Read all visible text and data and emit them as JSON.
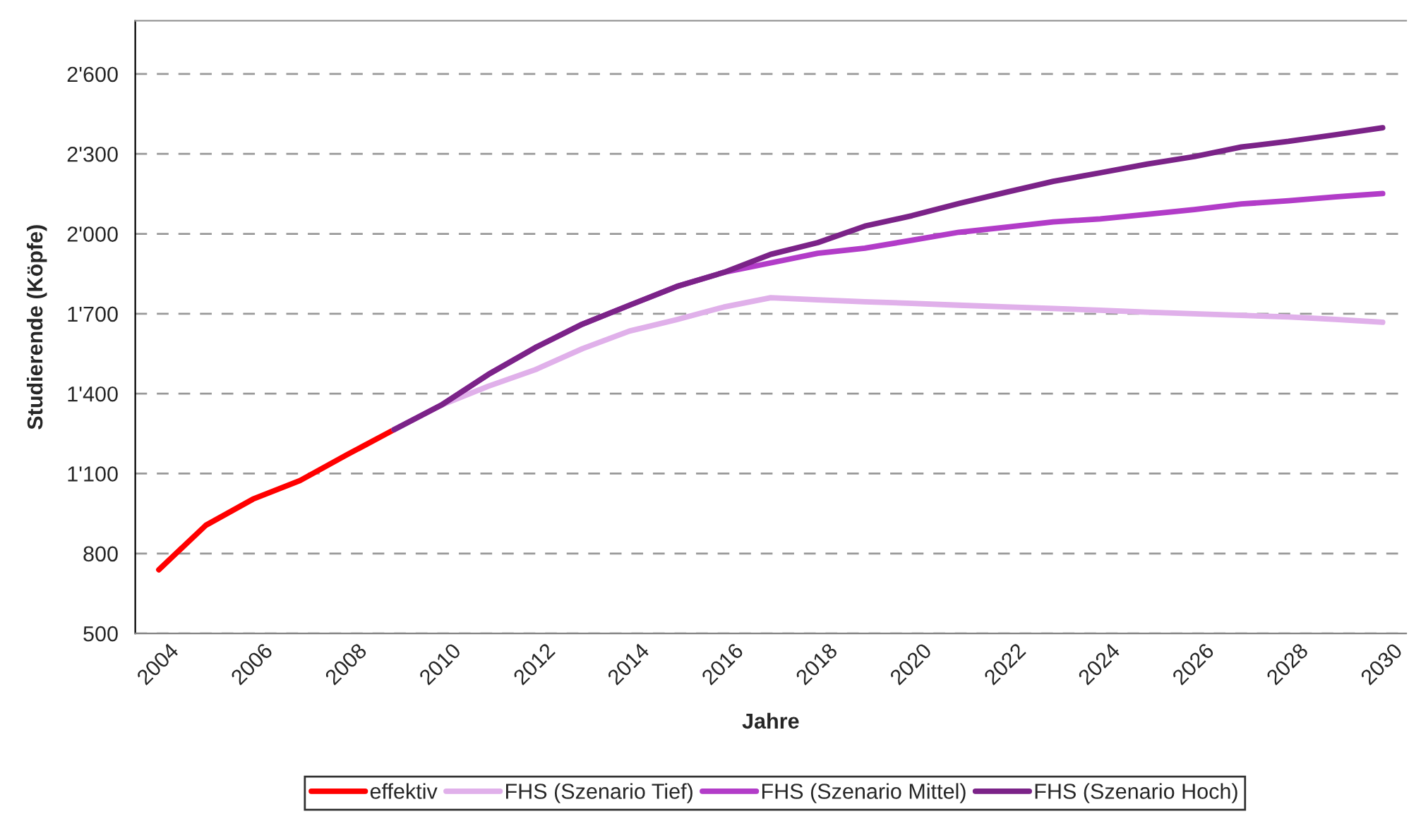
{
  "chart_data": {
    "type": "line",
    "xlabel": "Jahre",
    "ylabel": "Studierende (Köpfe)",
    "categories": [
      "2004",
      null,
      "2006",
      null,
      "2008",
      null,
      "2010",
      null,
      "2012",
      null,
      "2014",
      null,
      "2016",
      null,
      "2018",
      null,
      "2020",
      null,
      "2022",
      null,
      "2024",
      null,
      "2026",
      null,
      "2028",
      null,
      "2030"
    ],
    "ylim": [
      500,
      2800
    ],
    "yticks": [
      {
        "value": 500,
        "label": "500"
      },
      {
        "value": 800,
        "label": "800"
      },
      {
        "value": 1100,
        "label": "1'100"
      },
      {
        "value": 1400,
        "label": "1'400"
      },
      {
        "value": 1700,
        "label": "1'700"
      },
      {
        "value": 2000,
        "label": "2'000"
      },
      {
        "value": 2300,
        "label": "2'300"
      },
      {
        "value": 2600,
        "label": "2'600"
      }
    ],
    "grid": "y",
    "legend": "bottom",
    "marker": "none",
    "line_style": "solid",
    "series": [
      {
        "name": "effektiv",
        "color": "#ff0000",
        "values": [
          739,
          906,
          1004,
          1074,
          1171,
          1265,
          null,
          null,
          null,
          null,
          null,
          null,
          null,
          null,
          null,
          null,
          null,
          null,
          null,
          null,
          null,
          null,
          null,
          null,
          null,
          null,
          null
        ]
      },
      {
        "name": "FHS (Szenario Tief)",
        "color": "#e0b0ea",
        "values": [
          null,
          null,
          null,
          null,
          null,
          1265,
          1357,
          1428,
          1490,
          1569,
          1635,
          1678,
          1725,
          1760,
          1752,
          1745,
          1739,
          1732,
          1726,
          1720,
          1713,
          1706,
          1700,
          1694,
          1688,
          1679,
          1668
        ]
      },
      {
        "name": "FHS (Szenario Mittel)",
        "color": "#b23cc8",
        "values": [
          null,
          null,
          null,
          null,
          null,
          1265,
          1357,
          1472,
          1573,
          1661,
          1732,
          1802,
          1855,
          1891,
          1927,
          1946,
          1976,
          2006,
          2025,
          2045,
          2056,
          2073,
          2091,
          2112,
          2124,
          2139,
          2151
        ]
      },
      {
        "name": "FHS (Szenario Hoch)",
        "color": "#7b2388",
        "values": [
          null,
          null,
          null,
          null,
          null,
          1265,
          1357,
          1472,
          1573,
          1661,
          1732,
          1802,
          1855,
          1923,
          1967,
          2029,
          2068,
          2114,
          2156,
          2197,
          2229,
          2262,
          2290,
          2326,
          2347,
          2372,
          2398
        ]
      }
    ]
  }
}
